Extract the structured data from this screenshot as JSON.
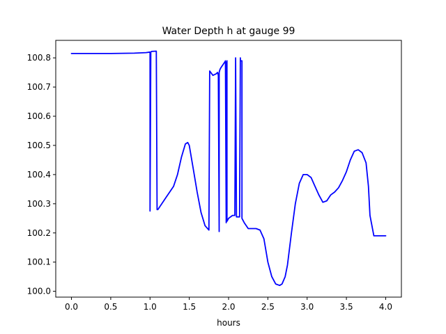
{
  "chart_data": {
    "type": "line",
    "title": "Water Depth h at gauge 99",
    "xlabel": "hours",
    "ylabel": "",
    "xlim": [
      -0.2,
      4.2
    ],
    "ylim": [
      99.98,
      100.86
    ],
    "xticks": [
      0.0,
      0.5,
      1.0,
      1.5,
      2.0,
      2.5,
      3.0,
      3.5,
      4.0
    ],
    "xtick_labels": [
      "0.0",
      "0.5",
      "1.0",
      "1.5",
      "2.0",
      "2.5",
      "3.0",
      "3.5",
      "4.0"
    ],
    "yticks": [
      100.0,
      100.1,
      100.2,
      100.3,
      100.4,
      100.5,
      100.6,
      100.7,
      100.8
    ],
    "ytick_labels": [
      "100.0",
      "100.1",
      "100.2",
      "100.3",
      "100.4",
      "100.5",
      "100.6",
      "100.7",
      "100.8"
    ],
    "grid": false,
    "legend": "none",
    "series": [
      {
        "color": "#0000ff",
        "x": [
          0.0,
          0.5,
          0.8,
          0.95,
          1.0,
          1.0,
          1.01,
          1.02,
          1.08,
          1.09,
          1.1,
          1.15,
          1.2,
          1.3,
          1.35,
          1.4,
          1.45,
          1.48,
          1.5,
          1.55,
          1.6,
          1.65,
          1.7,
          1.75,
          1.76,
          1.8,
          1.84,
          1.86,
          1.87,
          1.88,
          1.88,
          1.89,
          1.9,
          1.95,
          1.96,
          1.97,
          1.97,
          1.98,
          1.98,
          1.99,
          2.0,
          2.05,
          2.08,
          2.09,
          2.1,
          2.1,
          2.12,
          2.14,
          2.15,
          2.15,
          2.17,
          2.17,
          2.2,
          2.25,
          2.3,
          2.35,
          2.4,
          2.45,
          2.5,
          2.55,
          2.6,
          2.65,
          2.68,
          2.72,
          2.75,
          2.8,
          2.85,
          2.9,
          2.95,
          3.0,
          3.05,
          3.1,
          3.15,
          3.2,
          3.25,
          3.3,
          3.35,
          3.4,
          3.45,
          3.5,
          3.55,
          3.6,
          3.65,
          3.7,
          3.75,
          3.78,
          3.8,
          3.85,
          3.9,
          3.95,
          4.0
        ],
        "y": [
          100.815,
          100.815,
          100.816,
          100.818,
          100.82,
          100.275,
          100.82,
          100.822,
          100.823,
          100.28,
          100.28,
          100.3,
          100.32,
          100.36,
          100.4,
          100.46,
          100.505,
          100.51,
          100.5,
          100.42,
          100.34,
          100.27,
          100.225,
          100.21,
          100.755,
          100.74,
          100.745,
          100.75,
          100.74,
          100.205,
          100.75,
          100.76,
          100.765,
          100.785,
          100.79,
          100.235,
          100.775,
          100.79,
          100.24,
          100.245,
          100.25,
          100.26,
          100.26,
          100.8,
          100.26,
          100.255,
          100.255,
          100.255,
          100.8,
          100.79,
          100.79,
          100.25,
          100.235,
          100.215,
          100.215,
          100.215,
          100.21,
          100.18,
          100.1,
          100.05,
          100.025,
          100.02,
          100.025,
          100.05,
          100.09,
          100.2,
          100.3,
          100.37,
          100.4,
          100.4,
          100.39,
          100.36,
          100.33,
          100.305,
          100.31,
          100.33,
          100.34,
          100.355,
          100.38,
          100.41,
          100.45,
          100.48,
          100.485,
          100.475,
          100.44,
          100.36,
          100.26,
          100.19,
          100.19,
          100.19,
          100.19
        ]
      }
    ]
  }
}
